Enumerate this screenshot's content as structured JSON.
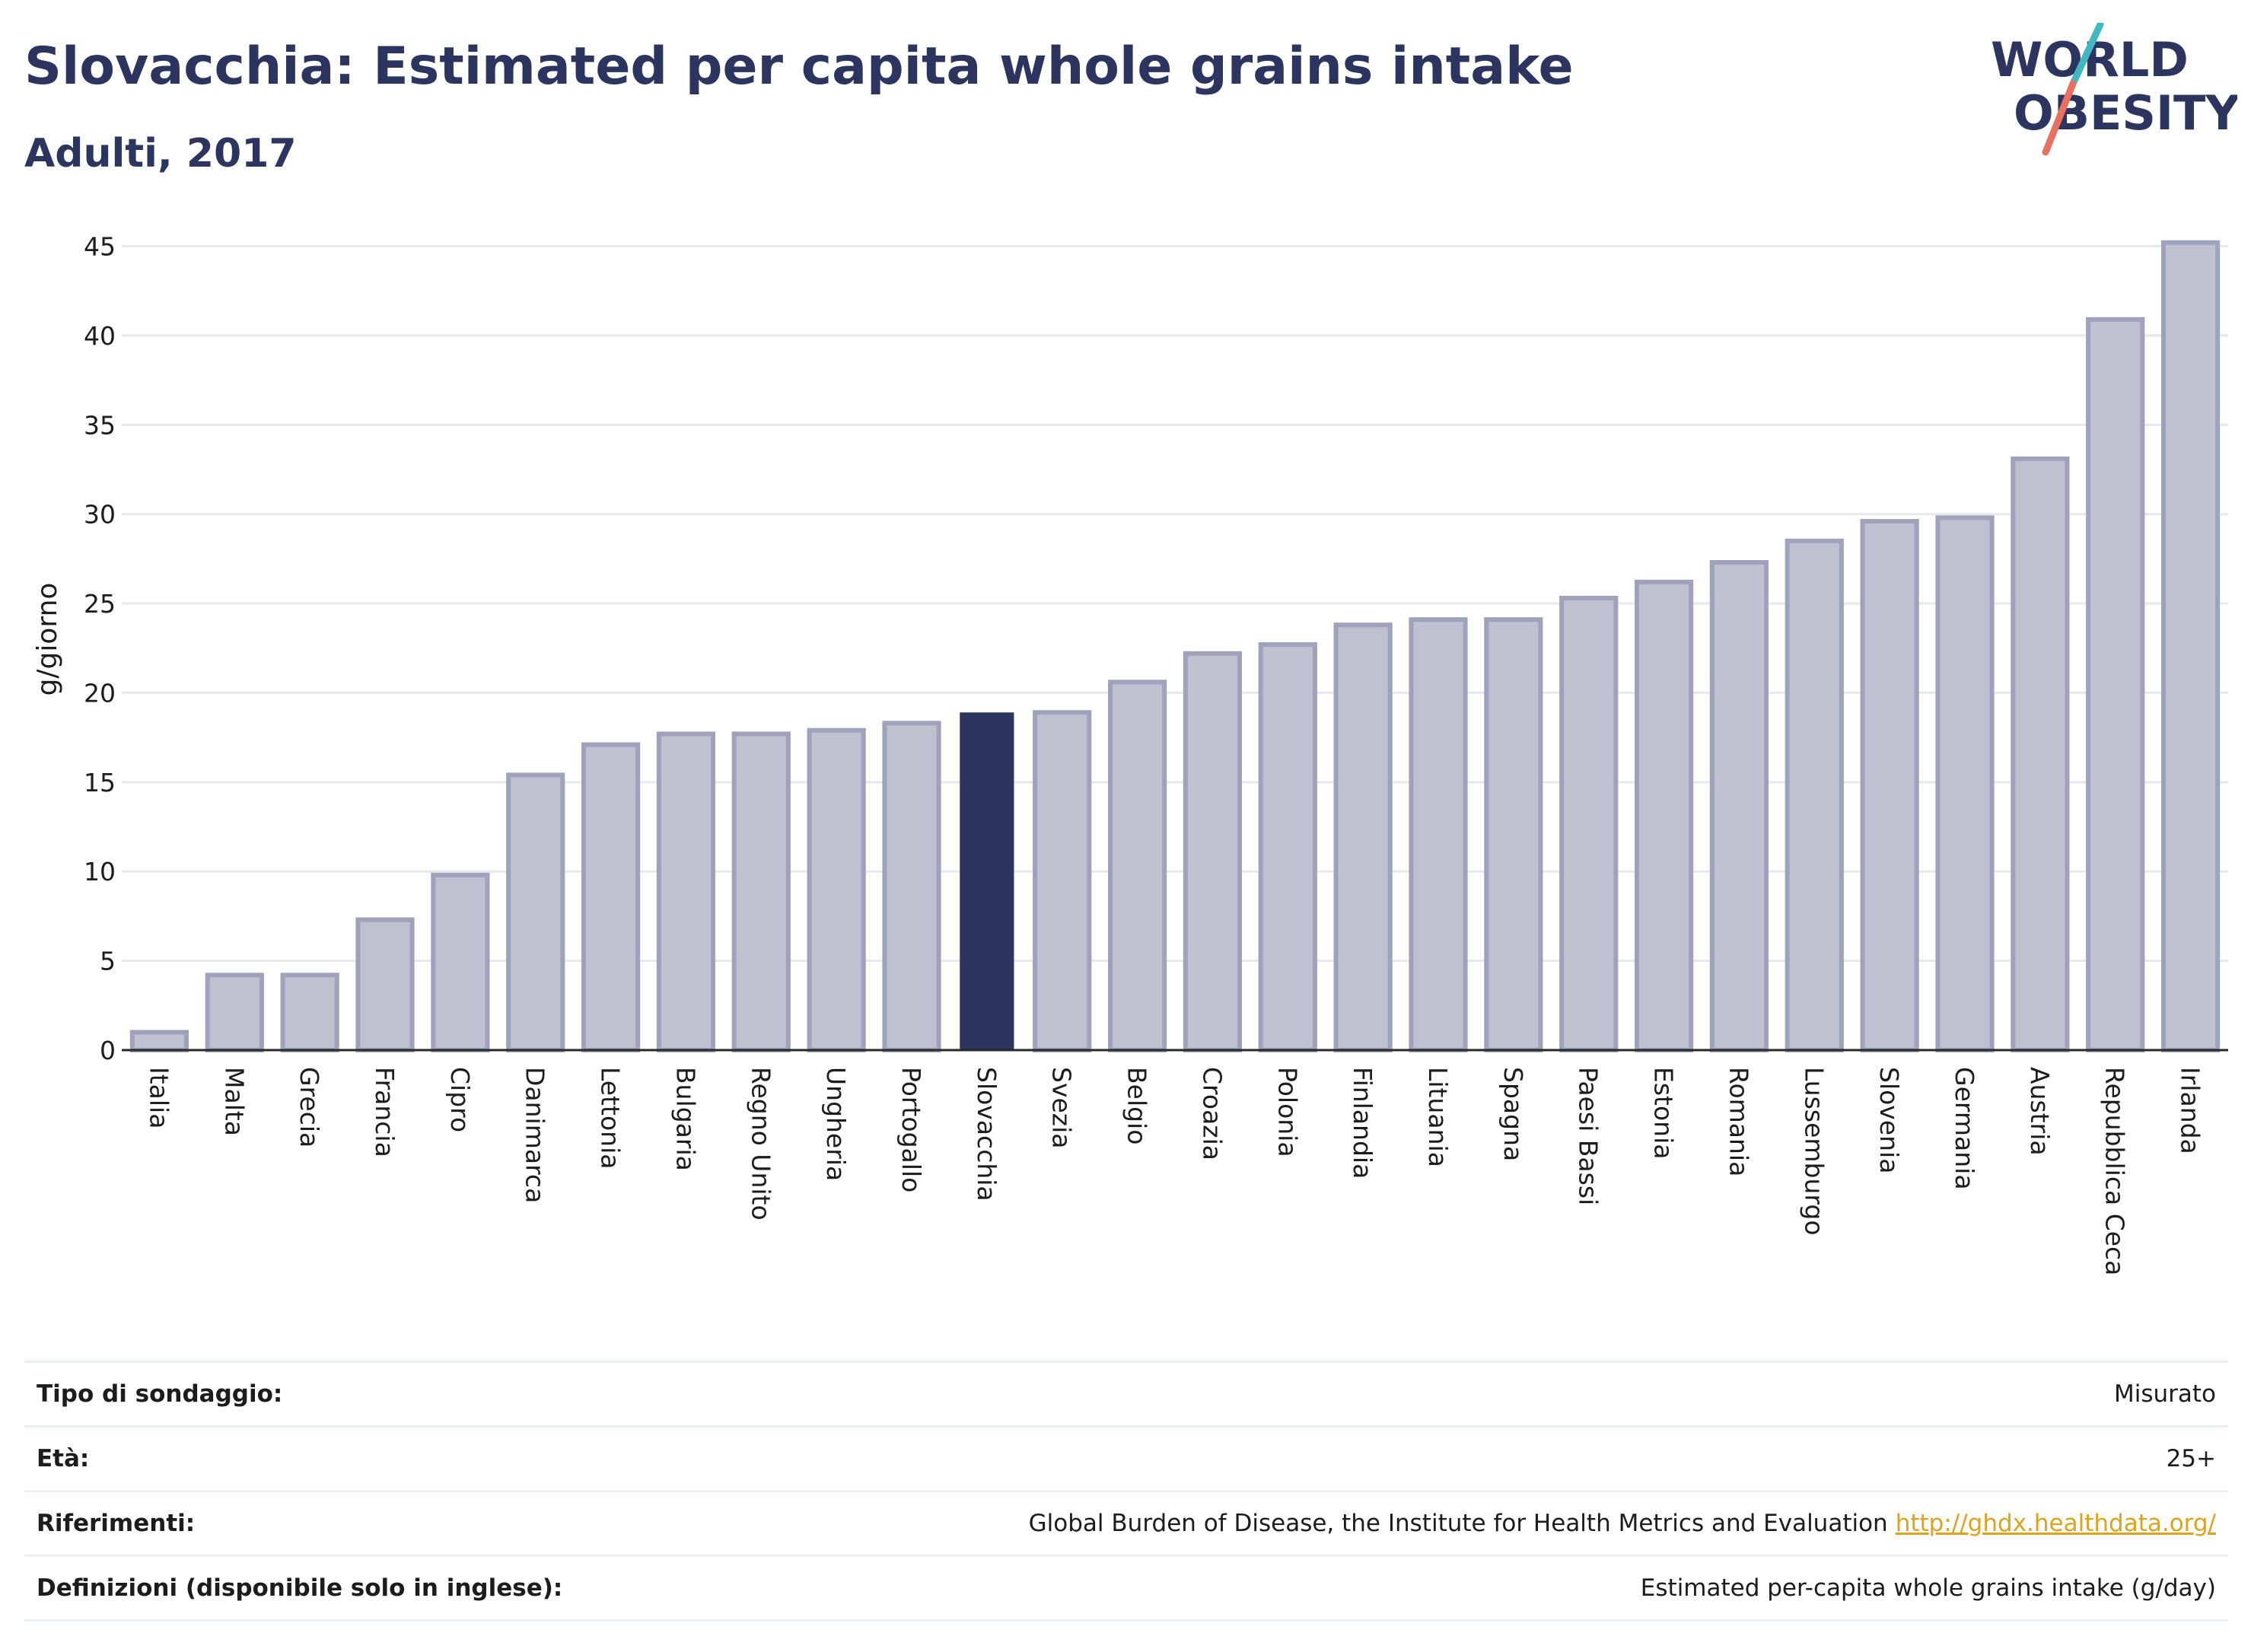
{
  "header": {
    "title": "Slovacchia: Estimated per capita whole grains intake",
    "subtitle": "Adulti, 2017"
  },
  "logo": {
    "line1": "WORLD",
    "line2": "OBESITY",
    "colors": {
      "text": "#2b3560",
      "slash_top": "#3fb8c4",
      "slash_bottom": "#e8705f"
    }
  },
  "colors": {
    "bar": "#bec1d0",
    "bar_border": "#9ea2bb",
    "highlight": "#2b3560",
    "grid": "#e6e8ee",
    "axis_text": "#1c1c1c"
  },
  "chart_data": {
    "type": "bar",
    "title": "Slovacchia: Estimated per capita whole grains intake",
    "subtitle": "Adulti, 2017",
    "xlabel": "",
    "ylabel": "g/giorno",
    "ylim": [
      0,
      46
    ],
    "yticks": [
      0,
      5,
      10,
      15,
      20,
      25,
      30,
      35,
      40,
      45
    ],
    "grid": true,
    "highlight": "Slovacchia",
    "categories": [
      "Italia",
      "Malta",
      "Grecia",
      "Francia",
      "Cipro",
      "Danimarca",
      "Lettonia",
      "Bulgaria",
      "Regno Unito",
      "Ungheria",
      "Portogallo",
      "Slovacchia",
      "Svezia",
      "Belgio",
      "Croazia",
      "Polonia",
      "Finlandia",
      "Lituania",
      "Spagna",
      "Paesi Bassi",
      "Estonia",
      "Romania",
      "Lussemburgo",
      "Slovenia",
      "Germania",
      "Austria",
      "Repubblica Ceca",
      "Irlanda"
    ],
    "values": [
      1.0,
      4.2,
      4.2,
      7.3,
      9.8,
      15.4,
      17.1,
      17.7,
      17.7,
      17.9,
      18.3,
      18.9,
      18.9,
      20.6,
      22.2,
      22.7,
      23.8,
      24.1,
      24.1,
      25.3,
      26.2,
      27.3,
      28.5,
      29.6,
      29.8,
      33.1,
      40.9,
      45.2
    ]
  },
  "info": {
    "rows": [
      {
        "label": "Tipo di sondaggio:",
        "value": "Misurato"
      },
      {
        "label": "Età:",
        "value": "25+"
      },
      {
        "label": "Riferimenti:",
        "value": "Global Burden of Disease, the Institute for Health Metrics and Evaluation",
        "link": "http://ghdx.healthdata.org/"
      },
      {
        "label": "Definizioni (disponibile solo in inglese):",
        "value": "Estimated per-capita whole grains intake (g/day)"
      }
    ]
  }
}
